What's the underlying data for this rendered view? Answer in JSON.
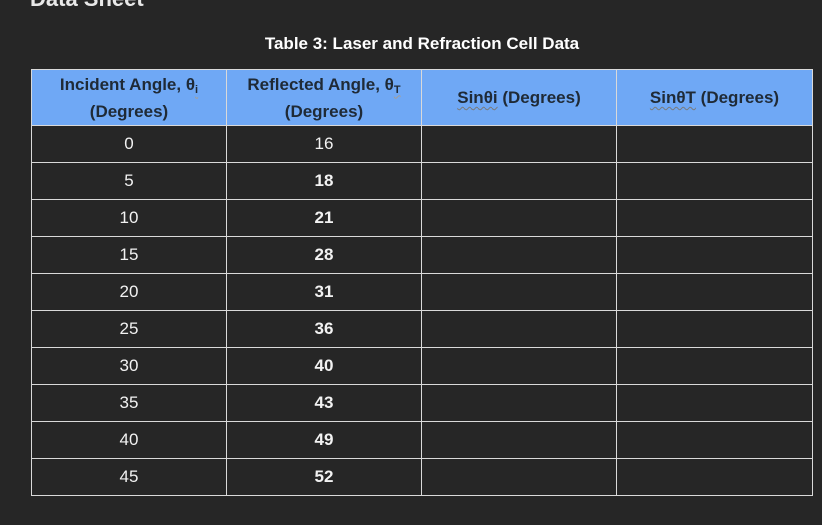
{
  "document": {
    "clipped_heading": "Data Sheet",
    "table_title": "Table 3: Laser and Refraction Cell Data"
  },
  "table": {
    "headers": [
      {
        "line1": "Incident Angle, θ",
        "sub": "i",
        "line2": "(Degrees)"
      },
      {
        "line1": "Reflected Angle, θ",
        "sub": "T",
        "line2": "(Degrees)"
      },
      {
        "prefix": "Sinθi",
        "suffix": " (Degrees)"
      },
      {
        "prefix": "SinθT",
        "suffix": " (Degrees)"
      }
    ],
    "rows": [
      {
        "incident": "0",
        "reflected": "16",
        "sin_i": "",
        "sin_t": ""
      },
      {
        "incident": "5",
        "reflected": "18",
        "sin_i": "",
        "sin_t": ""
      },
      {
        "incident": "10",
        "reflected": "21",
        "sin_i": "",
        "sin_t": ""
      },
      {
        "incident": "15",
        "reflected": "28",
        "sin_i": "",
        "sin_t": ""
      },
      {
        "incident": "20",
        "reflected": "31",
        "sin_i": "",
        "sin_t": ""
      },
      {
        "incident": "25",
        "reflected": "36",
        "sin_i": "",
        "sin_t": ""
      },
      {
        "incident": "30",
        "reflected": "40",
        "sin_i": "",
        "sin_t": ""
      },
      {
        "incident": "35",
        "reflected": "43",
        "sin_i": "",
        "sin_t": ""
      },
      {
        "incident": "40",
        "reflected": "49",
        "sin_i": "",
        "sin_t": ""
      },
      {
        "incident": "45",
        "reflected": "52",
        "sin_i": "",
        "sin_t": ""
      }
    ]
  },
  "colors": {
    "background": "#262626",
    "header_fill": "#6fa8f5",
    "grid_lines": "#d9d9d9"
  }
}
